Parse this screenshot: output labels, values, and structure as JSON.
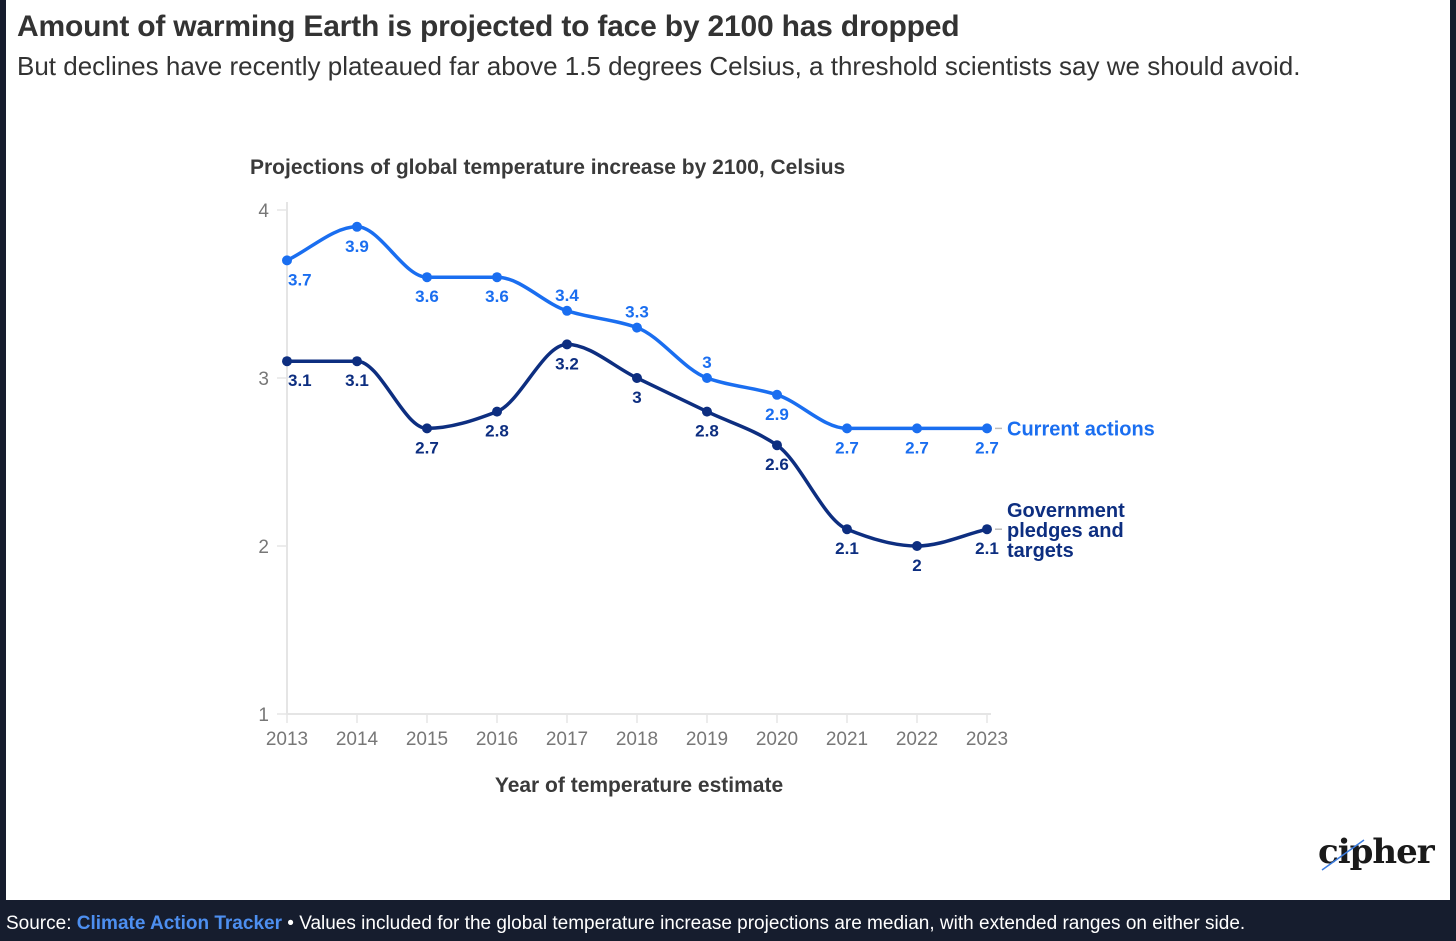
{
  "header": {
    "headline": "Amount of warming Earth is projected to face by 2100 has dropped",
    "dek": "But declines have recently plateaued far above 1.5 degrees Celsius, a threshold scientists say we should avoid."
  },
  "colors": {
    "current_actions": "#1a6ef0",
    "government_pledges": "#0d2e80",
    "axis": "#e5e5e5",
    "tick_text": "#777777",
    "frame": "#161d2e",
    "source_link": "#4d8ff0"
  },
  "chart_data": {
    "type": "line",
    "title": "Projections of global temperature increase by 2100, Celsius",
    "xlabel": "Year of temperature estimate",
    "ylabel": "",
    "x": [
      2013,
      2014,
      2015,
      2016,
      2017,
      2018,
      2019,
      2020,
      2021,
      2022,
      2023
    ],
    "x_tick_labels": [
      "2013",
      "2014",
      "2015",
      "2016",
      "2017",
      "2018",
      "2019",
      "2020",
      "2021",
      "2022",
      "2023"
    ],
    "ylim": [
      1,
      4
    ],
    "y_ticks": [
      1,
      2,
      3,
      4
    ],
    "y_tick_labels": [
      "1",
      "2",
      "3",
      "4"
    ],
    "grid": false,
    "smooth": true,
    "series": [
      {
        "name": "Current actions",
        "values": [
          3.7,
          3.9,
          3.6,
          3.6,
          3.4,
          3.3,
          3.0,
          2.9,
          2.7,
          2.7,
          2.7
        ],
        "labels": [
          "3.7",
          "3.9",
          "3.6",
          "3.6",
          "3.4",
          "3.3",
          "3",
          "2.9",
          "2.7",
          "2.7",
          "2.7"
        ],
        "label_position": [
          "below",
          "below",
          "below",
          "below",
          "above",
          "above",
          "above",
          "below",
          "below",
          "below",
          "below"
        ],
        "legend_lines": [
          "Current actions"
        ]
      },
      {
        "name": "Government pledges and targets",
        "values": [
          3.1,
          3.1,
          2.7,
          2.8,
          3.2,
          3.0,
          2.8,
          2.6,
          2.1,
          2.0,
          2.1
        ],
        "labels": [
          "3.1",
          "3.1",
          "2.7",
          "2.8",
          "3.2",
          "3",
          "2.8",
          "2.6",
          "2.1",
          "2",
          "2.1"
        ],
        "label_position": [
          "below",
          "below",
          "below",
          "below",
          "below",
          "below",
          "below",
          "below",
          "below",
          "below",
          "below"
        ],
        "legend_lines": [
          "Government",
          "pledges and",
          "targets"
        ]
      }
    ],
    "legend": "inline-right"
  },
  "logo": {
    "text": "cipher"
  },
  "footer": {
    "source_prefix": "Source: ",
    "source_name": "Climate Action Tracker",
    "note": " • Values included for the global temperature increase projections are median, with extended ranges on either side."
  }
}
